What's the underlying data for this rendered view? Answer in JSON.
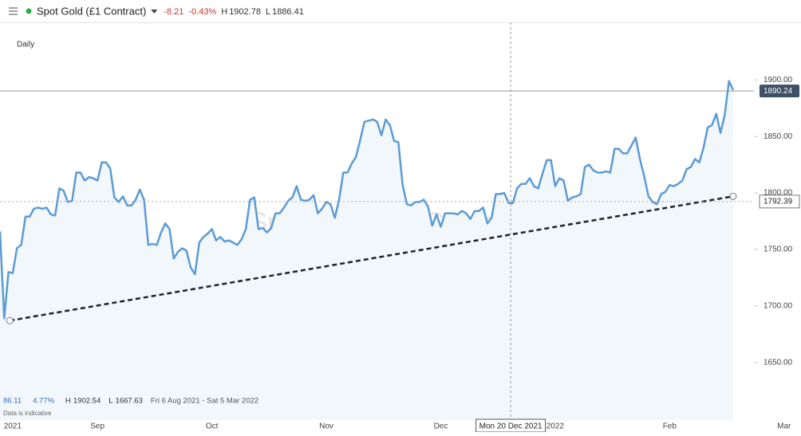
{
  "chart_data": {
    "type": "line",
    "title": "Spot Gold (£1 Contract)",
    "change": -8.21,
    "change_pct": {
      "value": -0.43,
      "label": "-0.43%"
    },
    "high_label": "H",
    "high": 1902.78,
    "low_label": "L",
    "low": 1886.41,
    "interval": "Daily",
    "current_price": 1890.24,
    "series": [
      {
        "name": "Spot Gold (£1 Contract)",
        "color": "#5b9bd5",
        "values": [
          1766,
          1689,
          1730,
          1729,
          1751,
          1754,
          1779,
          1779,
          1786,
          1787,
          1786,
          1787,
          1781,
          1780,
          1804,
          1802,
          1792,
          1793,
          1818,
          1818,
          1811,
          1814,
          1813,
          1811,
          1827,
          1827,
          1822,
          1796,
          1792,
          1797,
          1789,
          1789,
          1794,
          1803,
          1794,
          1754,
          1755,
          1754,
          1765,
          1773,
          1768,
          1742,
          1748,
          1751,
          1749,
          1734,
          1728,
          1756,
          1761,
          1764,
          1768,
          1758,
          1761,
          1757,
          1758,
          1756,
          1754,
          1759,
          1768,
          1794,
          1796,
          1768,
          1769,
          1765,
          1769,
          1782,
          1782,
          1787,
          1793,
          1796,
          1806,
          1794,
          1793,
          1794,
          1798,
          1782,
          1786,
          1792,
          1790,
          1778,
          1794,
          1818,
          1818,
          1826,
          1832,
          1847,
          1863,
          1864,
          1865,
          1863,
          1851,
          1865,
          1860,
          1846,
          1845,
          1807,
          1790,
          1789,
          1792,
          1792,
          1794,
          1788,
          1771,
          1781,
          1770,
          1782,
          1782,
          1782,
          1781,
          1784,
          1782,
          1777,
          1784,
          1784,
          1787,
          1773,
          1778,
          1799,
          1799,
          1800,
          1791,
          1791,
          1804,
          1808,
          1808,
          1813,
          1806,
          1804,
          1817,
          1829,
          1829,
          1806,
          1813,
          1811,
          1793,
          1796,
          1797,
          1799,
          1823,
          1825,
          1820,
          1818,
          1818,
          1819,
          1818,
          1839,
          1839,
          1835,
          1835,
          1842,
          1849,
          1830,
          1815,
          1797,
          1792,
          1790,
          1799,
          1801,
          1807,
          1806,
          1808,
          1811,
          1821,
          1823,
          1830,
          1827,
          1840,
          1858,
          1860,
          1870,
          1853,
          1869,
          1899,
          1891
        ]
      }
    ],
    "trendline": {
      "x": [
        2.3,
        173
      ],
      "values": [
        1687,
        1797
      ],
      "color": "#222222"
    },
    "crosshair": {
      "x": 120.5,
      "x_label": "Mon 20 Dec 2021",
      "value": 1792.39
    },
    "xlim": [
      0,
      173
    ],
    "xticks": [
      {
        "value": 3,
        "label": "2021"
      },
      {
        "value": 23,
        "label": "Sep"
      },
      {
        "value": 50,
        "label": "Oct"
      },
      {
        "value": 77,
        "label": "Nov"
      },
      {
        "value": 104,
        "label": "Dec"
      },
      {
        "value": 131,
        "label": "2022"
      },
      {
        "value": 158,
        "label": "Feb"
      },
      {
        "value": 185,
        "label": "Mar"
      }
    ],
    "ylim": [
      1599,
      1951
    ],
    "yticks": [
      {
        "value": 1650,
        "label": "1650.00"
      },
      {
        "value": 1700,
        "label": "1700.00"
      },
      {
        "value": 1750,
        "label": "1750.00"
      },
      {
        "value": 1800,
        "label": "1800.00"
      },
      {
        "value": 1850,
        "label": "1850.00"
      },
      {
        "value": 1900,
        "label": "1900.00"
      }
    ],
    "stats": {
      "change": 86.11,
      "change_pct": {
        "value": 4.77,
        "label": "4.77%"
      },
      "high_label": "H",
      "high": 1902.54,
      "low_label": "L",
      "low": 1667.63,
      "range": "Fri 6 Aug 2021 - Sat 5 Mar 2022",
      "note": "Data is indicative"
    }
  }
}
